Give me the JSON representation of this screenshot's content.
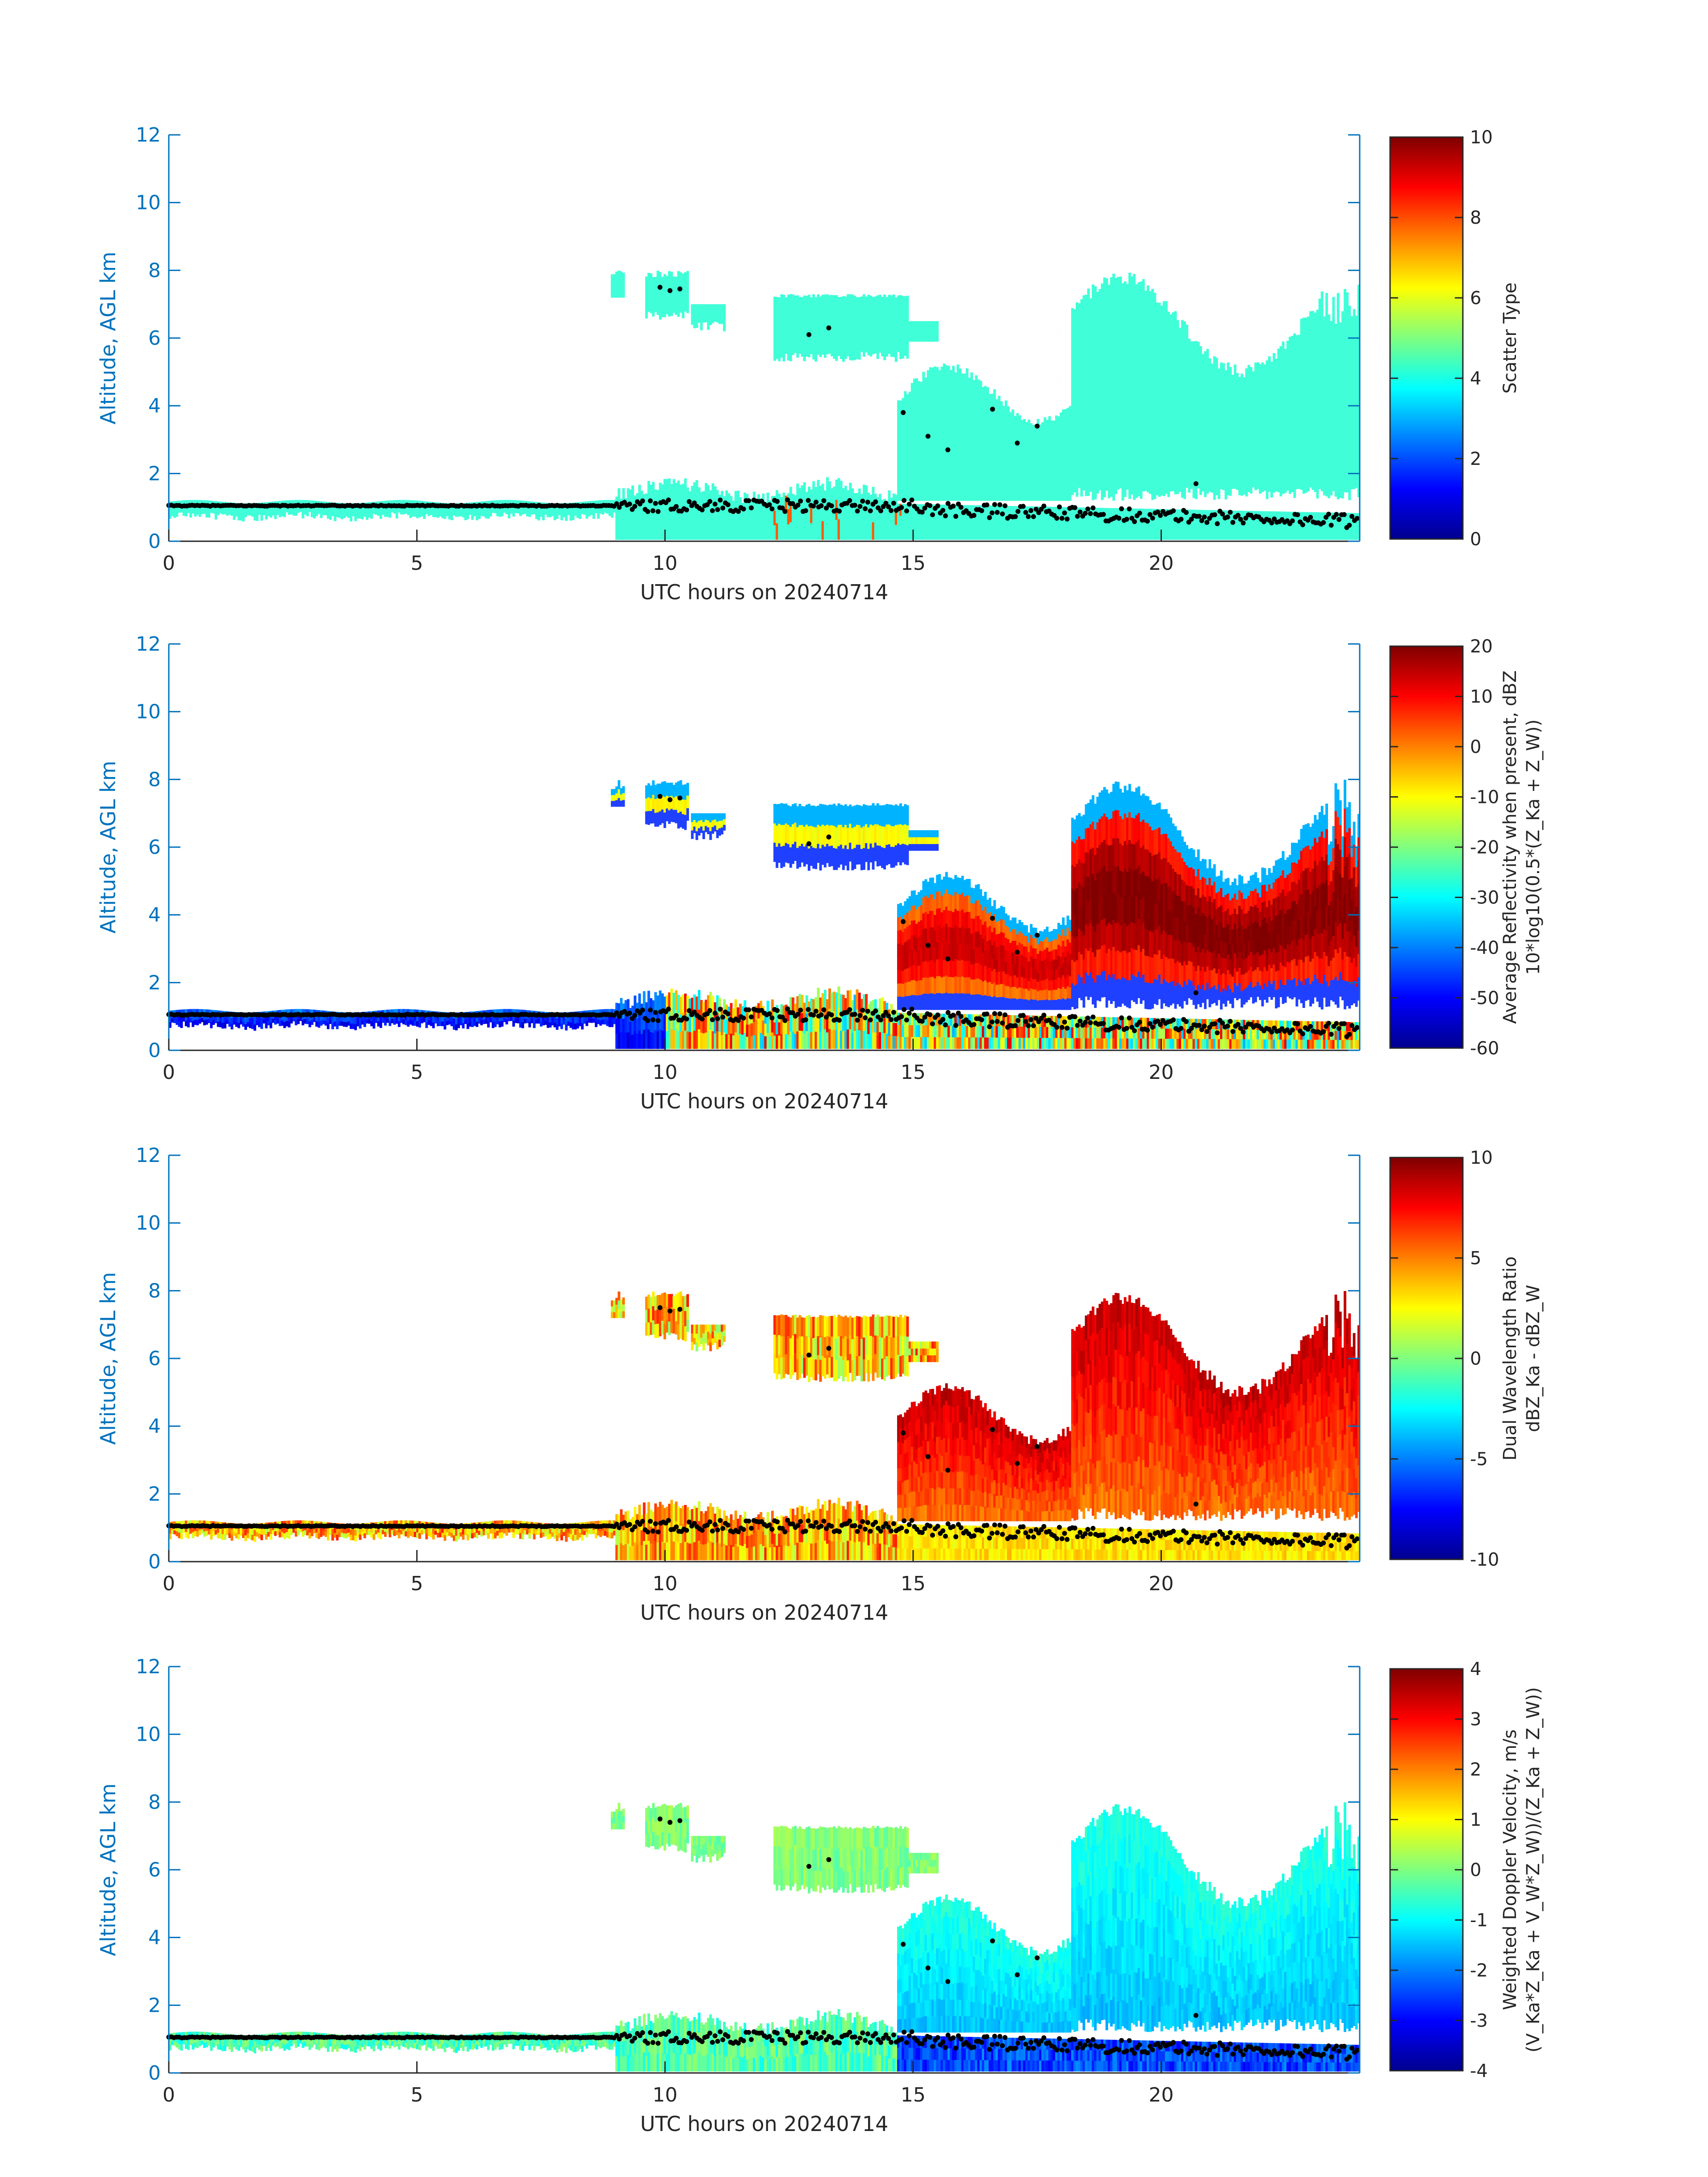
{
  "figure": {
    "date": "20240714"
  },
  "chart_data": [
    {
      "type": "heatmap",
      "title": "",
      "xlabel": "UTC hours on 20240714",
      "ylabel": "Altitude, AGL km",
      "xlim": [
        0,
        24
      ],
      "ylim": [
        0,
        12
      ],
      "xticks": [
        "0",
        "5",
        "10",
        "15",
        "20"
      ],
      "yticks": [
        "0",
        "2",
        "4",
        "6",
        "8",
        "10",
        "12"
      ],
      "colorbar": {
        "label_lines": [
          "Scatter Type"
        ],
        "range": [
          0,
          10
        ],
        "ticks": [
          "0",
          "2",
          "4",
          "6",
          "8",
          "10"
        ]
      },
      "field": "scatter"
    },
    {
      "type": "heatmap",
      "title": "",
      "xlabel": "UTC hours on 20240714",
      "ylabel": "Altitude, AGL km",
      "xlim": [
        0,
        24
      ],
      "ylim": [
        0,
        12
      ],
      "xticks": [
        "0",
        "5",
        "10",
        "15",
        "20"
      ],
      "yticks": [
        "0",
        "2",
        "4",
        "6",
        "8",
        "10",
        "12"
      ],
      "colorbar": {
        "label_lines": [
          "Average Reflectivity when present, dBZ",
          "10*log10(0.5*(Z_Ka + Z_W))"
        ],
        "range": [
          -60,
          20
        ],
        "ticks": [
          "-60",
          "-50",
          "-40",
          "-30",
          "-20",
          "-10",
          "0",
          "10",
          "20"
        ]
      },
      "field": "reflectivity"
    },
    {
      "type": "heatmap",
      "title": "",
      "xlabel": "UTC hours on 20240714",
      "ylabel": "Altitude, AGL km",
      "xlim": [
        0,
        24
      ],
      "ylim": [
        0,
        12
      ],
      "xticks": [
        "0",
        "5",
        "10",
        "15",
        "20"
      ],
      "yticks": [
        "0",
        "2",
        "4",
        "6",
        "8",
        "10",
        "12"
      ],
      "colorbar": {
        "label_lines": [
          "Dual Wavelength Ratio",
          "dBZ_Ka - dBZ_W"
        ],
        "range": [
          -10,
          10
        ],
        "ticks": [
          "-10",
          "-5",
          "0",
          "5",
          "10"
        ]
      },
      "field": "dwr"
    },
    {
      "type": "heatmap",
      "title": "",
      "xlabel": "UTC hours on 20240714",
      "ylabel": "Altitude, AGL km",
      "xlim": [
        0,
        24
      ],
      "ylim": [
        0,
        12
      ],
      "xticks": [
        "0",
        "5",
        "10",
        "15",
        "20"
      ],
      "yticks": [
        "0",
        "2",
        "4",
        "6",
        "8",
        "10",
        "12"
      ],
      "colorbar": {
        "label_lines": [
          "Weighted Doppler Velocity, m/s",
          "(V_Ka*Z_Ka + V_W*Z_W))/(Z_Ka + Z_W))"
        ],
        "range": [
          -4,
          4
        ],
        "ticks": [
          "-4",
          "-3",
          "-2",
          "-1",
          "0",
          "1",
          "2",
          "3",
          "4"
        ]
      },
      "field": "velocity"
    }
  ]
}
